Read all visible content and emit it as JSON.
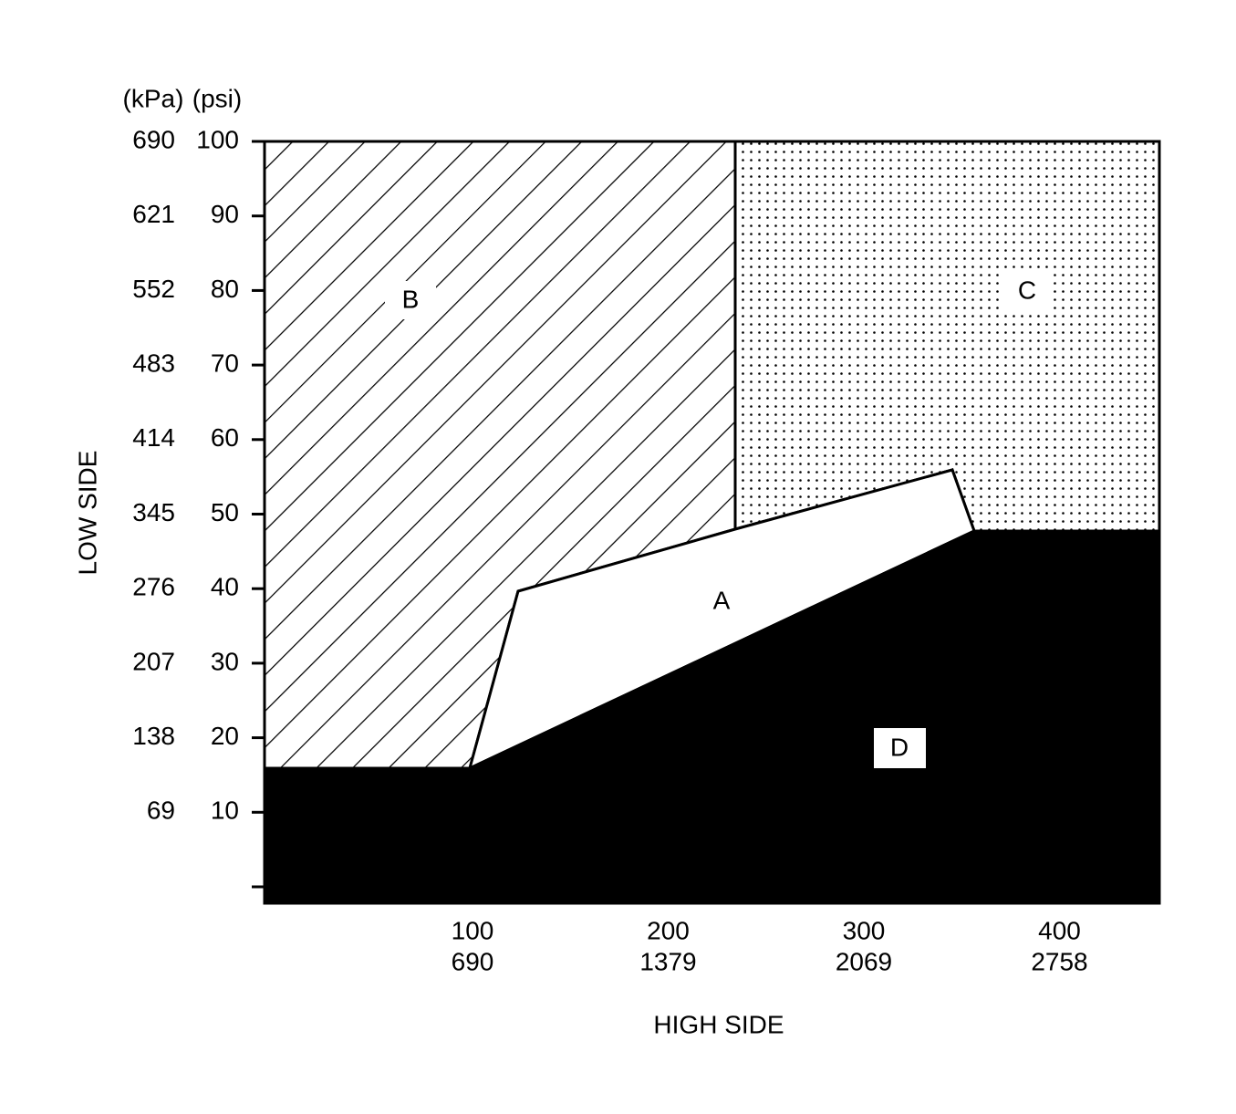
{
  "y_axis": {
    "title": "LOW SIDE",
    "units": [
      "(kPa)",
      "(psi)"
    ],
    "ticks": [
      {
        "kpa": "690",
        "psi": "100"
      },
      {
        "kpa": "621",
        "psi": "90"
      },
      {
        "kpa": "552",
        "psi": "80"
      },
      {
        "kpa": "483",
        "psi": "70"
      },
      {
        "kpa": "414",
        "psi": "60"
      },
      {
        "kpa": "345",
        "psi": "50"
      },
      {
        "kpa": "276",
        "psi": "40"
      },
      {
        "kpa": "207",
        "psi": "30"
      },
      {
        "kpa": "138",
        "psi": "20"
      },
      {
        "kpa": "69",
        "psi": "10"
      }
    ]
  },
  "x_axis": {
    "title": "HIGH SIDE",
    "ticks": [
      {
        "psi": "100",
        "kpa": "690"
      },
      {
        "psi": "200",
        "kpa": "1379"
      },
      {
        "psi": "300",
        "kpa": "2069"
      },
      {
        "psi": "400",
        "kpa": "2758"
      }
    ]
  },
  "regions": [
    "A",
    "B",
    "C",
    "D"
  ]
}
